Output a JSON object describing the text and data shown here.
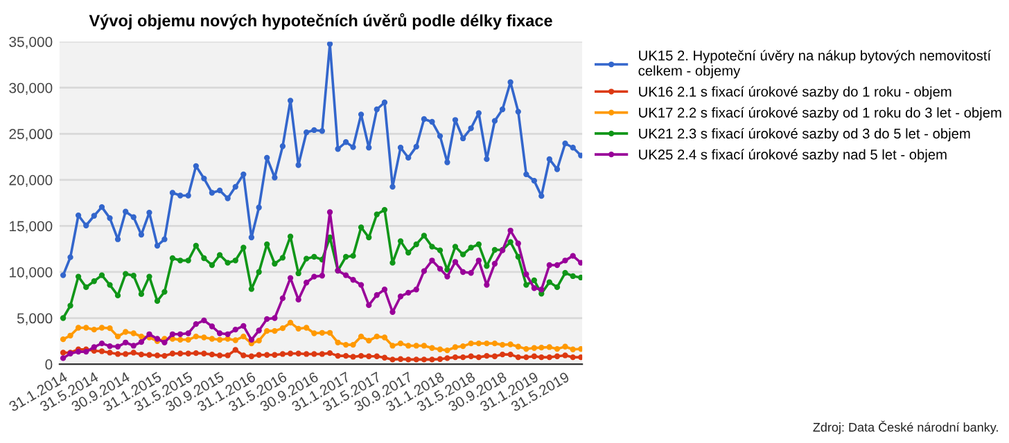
{
  "chart_data": {
    "type": "line",
    "title": "Vývoj objemu nových hypotečních úvěrů podle délky fixace",
    "x": [
      "2014-01-31",
      "2014-02-28",
      "2014-03-31",
      "2014-04-30",
      "2014-05-31",
      "2014-06-30",
      "2014-07-31",
      "2014-08-31",
      "2014-09-30",
      "2014-10-31",
      "2014-11-30",
      "2014-12-31",
      "2015-01-31",
      "2015-02-28",
      "2015-03-31",
      "2015-04-30",
      "2015-05-31",
      "2015-06-30",
      "2015-07-31",
      "2015-08-31",
      "2015-09-30",
      "2015-10-31",
      "2015-11-30",
      "2015-12-31",
      "2016-01-31",
      "2016-02-29",
      "2016-03-31",
      "2016-04-30",
      "2016-05-31",
      "2016-06-30",
      "2016-07-31",
      "2016-08-31",
      "2016-09-30",
      "2016-10-31",
      "2016-11-30",
      "2016-12-31",
      "2017-01-31",
      "2017-02-28",
      "2017-03-31",
      "2017-04-30",
      "2017-05-31",
      "2017-06-30",
      "2017-07-31",
      "2017-08-31",
      "2017-09-30",
      "2017-10-31",
      "2017-11-30",
      "2017-12-31",
      "2018-01-31",
      "2018-02-28",
      "2018-03-31",
      "2018-04-30",
      "2018-05-31",
      "2018-06-30",
      "2018-07-31",
      "2018-08-31",
      "2018-09-30",
      "2018-10-31",
      "2018-11-30",
      "2018-12-31",
      "2019-01-31",
      "2019-02-28",
      "2019-03-31",
      "2019-04-30",
      "2019-05-31",
      "2019-06-30",
      "2019-07-31"
    ],
    "series": [
      {
        "name": "UK15 2. Hypoteční úvěry na nákup bytových nemovitostí celkem - objemy",
        "color": "#3366cc",
        "values": [
          9650,
          11600,
          16150,
          15050,
          16100,
          17050,
          15850,
          13550,
          16550,
          15950,
          14050,
          16450,
          12850,
          13550,
          18600,
          18300,
          18300,
          21500,
          20150,
          18600,
          18850,
          18000,
          19250,
          20600,
          13750,
          17000,
          22400,
          20250,
          23650,
          28600,
          21600,
          25150,
          25400,
          25300,
          34750,
          23350,
          24100,
          23550,
          27100,
          23500,
          27650,
          28400,
          19250,
          23500,
          22400,
          23600,
          26600,
          26300,
          24750,
          21900,
          26500,
          24500,
          25600,
          27250,
          22250,
          26400,
          27650,
          30600,
          27400,
          20600,
          19900,
          18250,
          22250,
          21150,
          23950,
          23500,
          22650
        ]
      },
      {
        "name": "UK16 2.1 s fixací úrokové sazby do 1 roku - objem",
        "color": "#dc3912",
        "values": [
          1250,
          1250,
          1600,
          1600,
          1450,
          1400,
          1250,
          1100,
          1100,
          1250,
          1050,
          1000,
          950,
          900,
          1150,
          1150,
          1150,
          1200,
          1150,
          1050,
          950,
          950,
          1550,
          950,
          850,
          1000,
          1000,
          1000,
          1100,
          1150,
          1150,
          1100,
          1100,
          1100,
          1200,
          900,
          900,
          800,
          900,
          850,
          850,
          700,
          500,
          550,
          500,
          500,
          500,
          500,
          550,
          650,
          750,
          750,
          850,
          750,
          900,
          850,
          1050,
          1050,
          750,
          750,
          850,
          750,
          750,
          850,
          950,
          750,
          750
        ]
      },
      {
        "name": "UK17 2.2 s fixací úrokové sazby od 1 roku do 3 let - objem",
        "color": "#ff9900",
        "values": [
          2700,
          3100,
          3950,
          3950,
          3750,
          3950,
          3900,
          3000,
          3500,
          3350,
          3000,
          2900,
          2500,
          2750,
          2750,
          2650,
          2650,
          3000,
          2900,
          2750,
          2650,
          2750,
          2600,
          3000,
          2250,
          2550,
          3600,
          3600,
          3900,
          4500,
          3850,
          3950,
          3350,
          3400,
          3400,
          2350,
          2100,
          2100,
          3000,
          2550,
          3000,
          2900,
          2000,
          2250,
          2000,
          2000,
          2000,
          1750,
          1600,
          1500,
          1850,
          1950,
          2250,
          2250,
          2250,
          2250,
          2100,
          2150,
          1900,
          1650,
          1750,
          1800,
          1850,
          1650,
          1900,
          1600,
          1650
        ]
      },
      {
        "name": "UK21 2.3 s fixací úrokové sazby od 3 do 5 let - objem",
        "color": "#109618",
        "values": [
          5000,
          6350,
          9500,
          8350,
          9000,
          9650,
          8600,
          7450,
          9800,
          9600,
          7600,
          9500,
          6850,
          7850,
          11500,
          11250,
          11250,
          12850,
          11500,
          10750,
          11850,
          11000,
          11250,
          12650,
          8150,
          10000,
          13000,
          10900,
          11550,
          13850,
          9850,
          11450,
          11650,
          11350,
          13750,
          10150,
          11650,
          11750,
          14850,
          13750,
          16250,
          16750,
          11000,
          13350,
          12100,
          13000,
          13950,
          12750,
          12350,
          10250,
          12750,
          11900,
          12650,
          13000,
          10650,
          12400,
          12400,
          13250,
          11650,
          8600,
          9100,
          7650,
          8900,
          8350,
          9900,
          9550,
          9400
        ]
      },
      {
        "name": "UK25 2.4 s fixací úrokové sazby nad 5 let - objem",
        "color": "#990099",
        "values": [
          650,
          1150,
          1350,
          1350,
          1850,
          2250,
          1950,
          1900,
          2350,
          2000,
          2400,
          3250,
          2750,
          2350,
          3250,
          3250,
          3350,
          4350,
          4750,
          4100,
          3350,
          3250,
          3750,
          4150,
          2650,
          3650,
          4900,
          5000,
          7150,
          9350,
          7000,
          8850,
          9500,
          9600,
          16500,
          10150,
          9650,
          9150,
          8600,
          6400,
          7500,
          8100,
          5650,
          7350,
          7750,
          8100,
          10100,
          11250,
          10350,
          9500,
          11100,
          10000,
          9900,
          11250,
          8600,
          10900,
          12350,
          14500,
          13100,
          9750,
          8250,
          8100,
          10750,
          10750,
          11250,
          11750,
          11000
        ]
      }
    ],
    "xlim": [
      "2014-01-17",
      "2019-08-05"
    ],
    "xticks": [
      {
        "value": "2014-01-31",
        "label": "31.1.2014"
      },
      {
        "value": "2014-05-31",
        "label": "31.5.2014"
      },
      {
        "value": "2014-09-30",
        "label": "30.9.2014"
      },
      {
        "value": "2015-01-31",
        "label": "31.1.2015"
      },
      {
        "value": "2015-05-31",
        "label": "31.5.2015"
      },
      {
        "value": "2015-09-30",
        "label": "30.9.2015"
      },
      {
        "value": "2016-01-31",
        "label": "31.1.2016"
      },
      {
        "value": "2016-05-31",
        "label": "31.5.2016"
      },
      {
        "value": "2016-09-30",
        "label": "30.9.2016"
      },
      {
        "value": "2017-01-31",
        "label": "31.1.2017"
      },
      {
        "value": "2017-05-31",
        "label": "31.5.2017"
      },
      {
        "value": "2017-09-30",
        "label": "30.9.2017"
      },
      {
        "value": "2018-01-31",
        "label": "31.1.2018"
      },
      {
        "value": "2018-05-31",
        "label": "31.5.2018"
      },
      {
        "value": "2018-09-30",
        "label": "30.9.2018"
      },
      {
        "value": "2019-01-31",
        "label": "31.1.2019"
      },
      {
        "value": "2019-05-31",
        "label": "31.5.2019"
      }
    ],
    "ylim": [
      0,
      35000
    ],
    "yticks": [
      0,
      {
        "value": 5000,
        "label": "5,000"
      },
      {
        "value": 10000,
        "label": "10,000"
      },
      {
        "value": 15000,
        "label": "15,000"
      },
      {
        "value": 20000,
        "label": "20,000"
      },
      {
        "value": 25000,
        "label": "25,000"
      },
      {
        "value": 30000,
        "label": "30,000"
      },
      {
        "value": 35000,
        "label": "35,000"
      }
    ],
    "grid": "y",
    "legend": "right",
    "marker": "circle",
    "line_style": "solid",
    "annotations": [
      "Zdroj: Data České národní banky."
    ]
  }
}
